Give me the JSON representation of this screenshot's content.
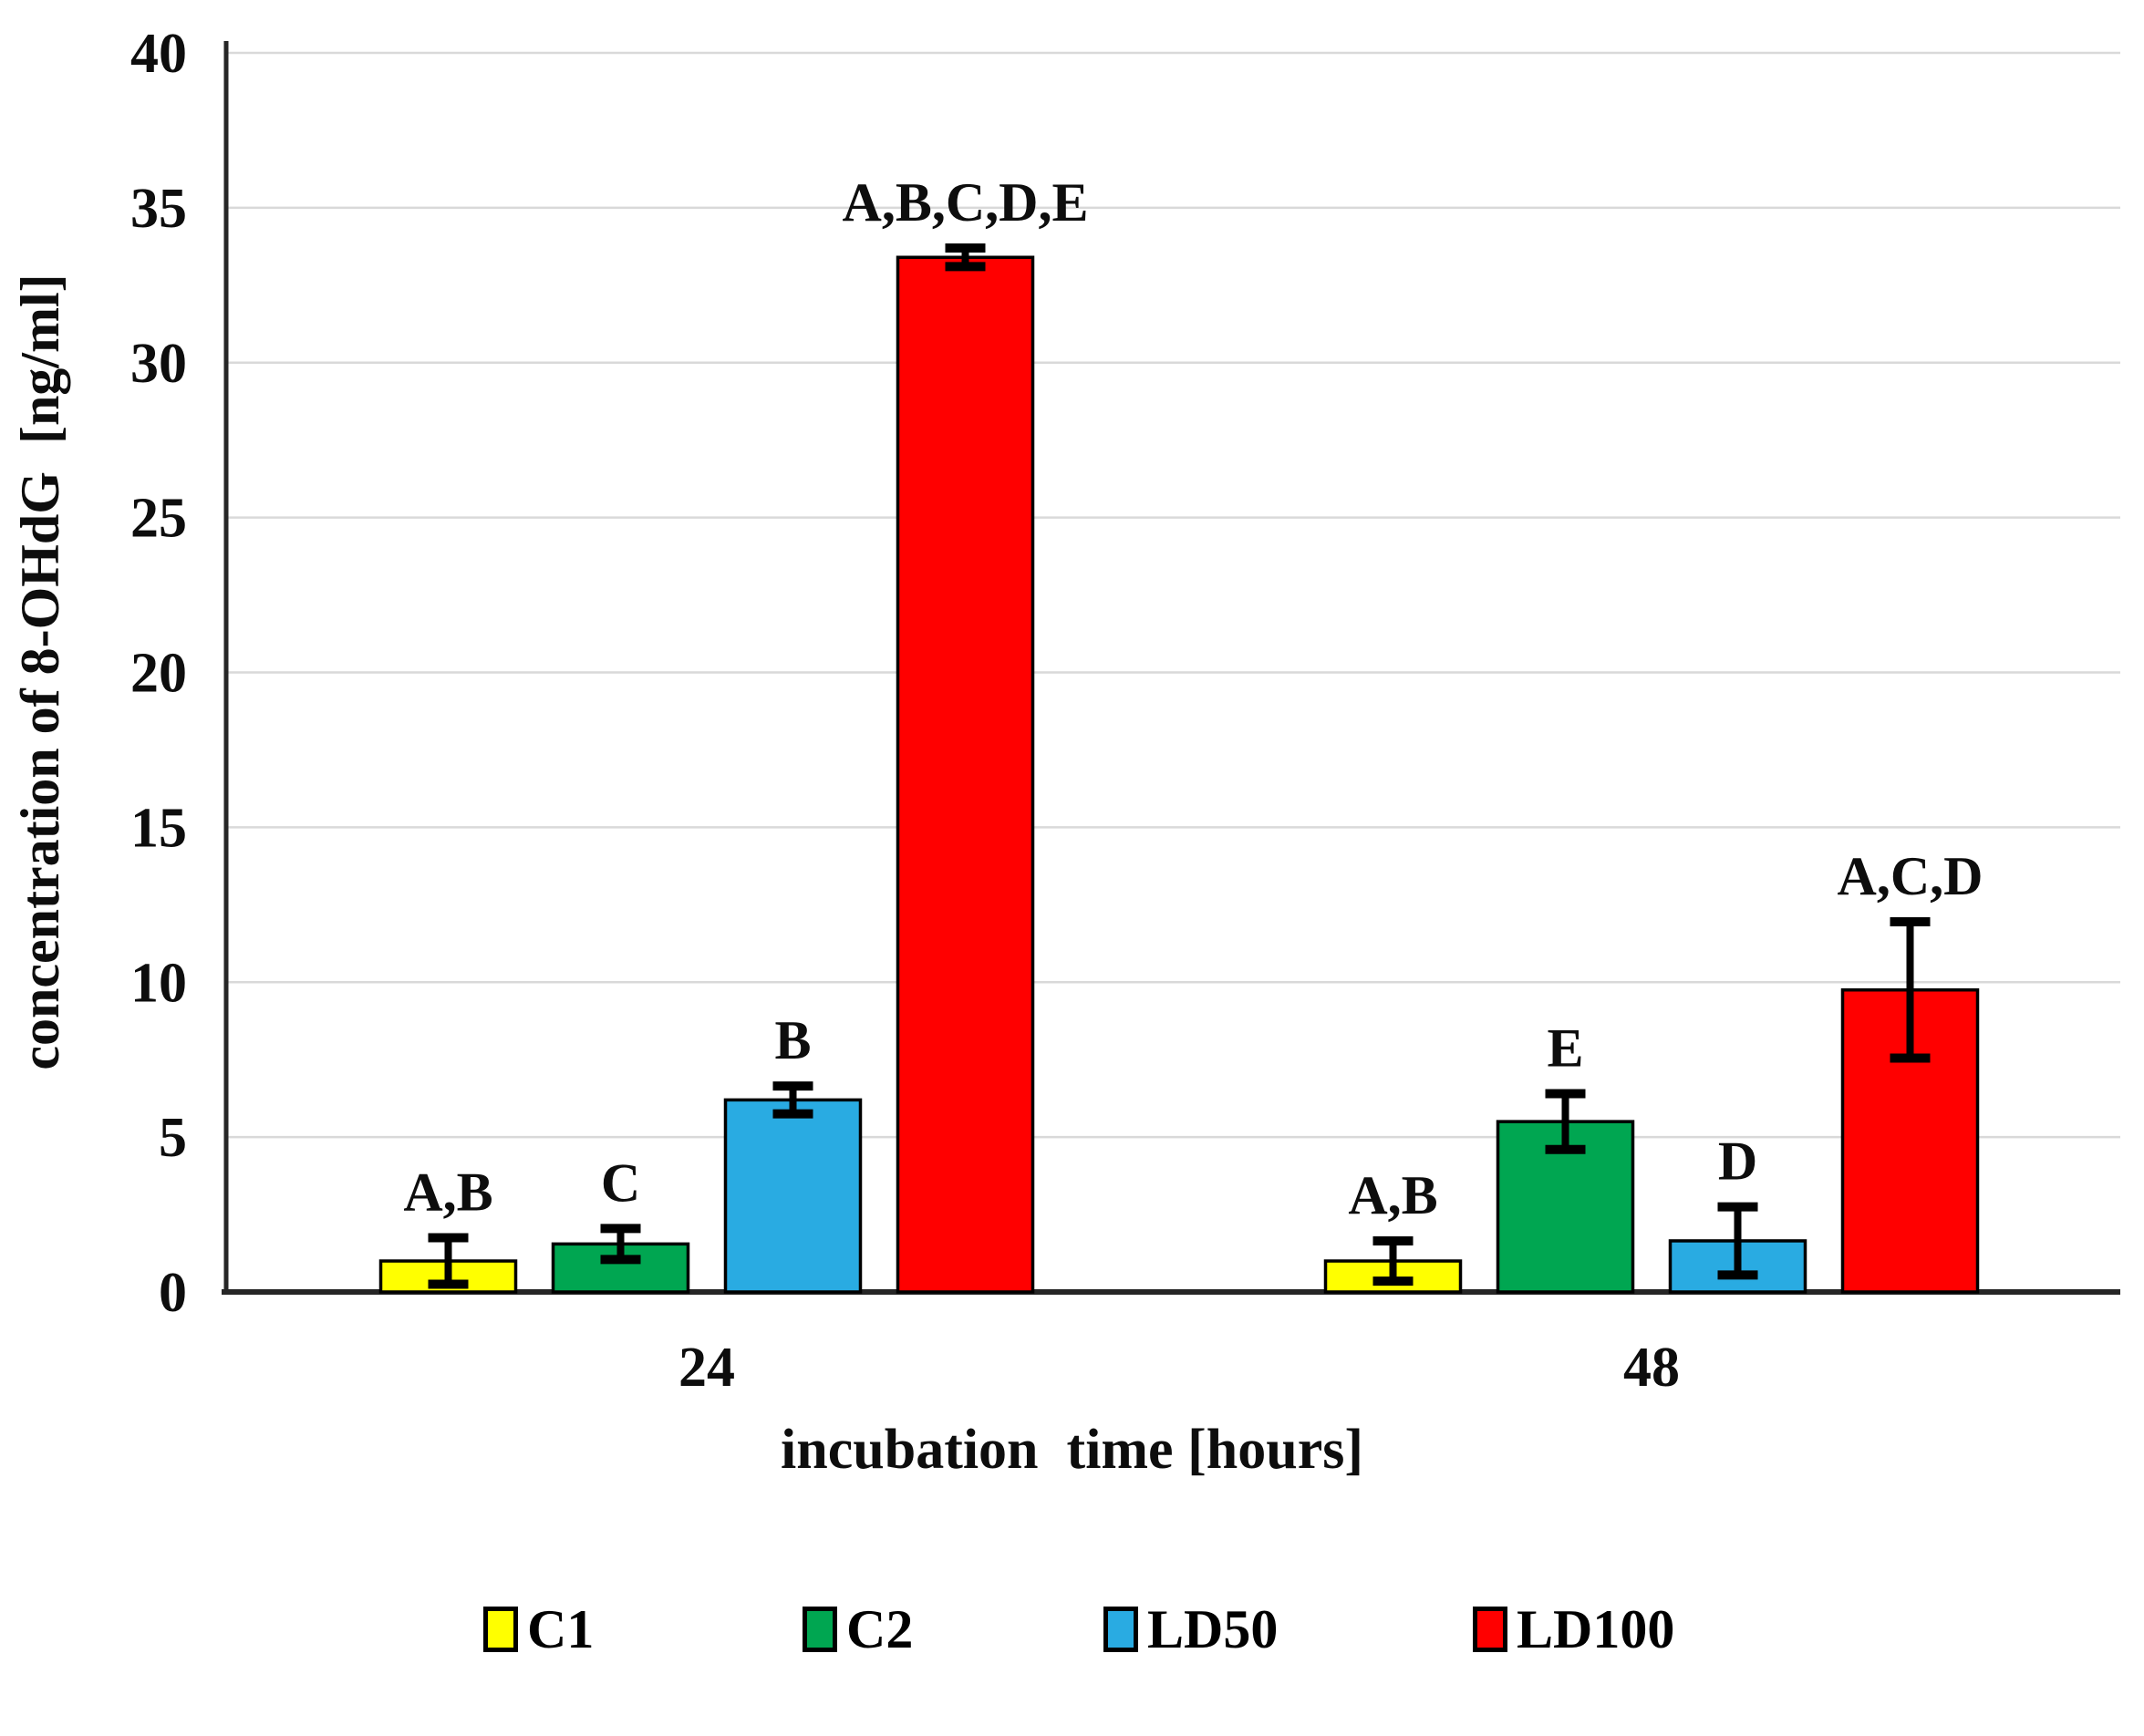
{
  "chart_data": {
    "type": "bar",
    "title": "",
    "xlabel": "incubation  time [hours]",
    "ylabel": "concentration of 8-OHdG  [ng/ml]",
    "ylim": [
      0,
      40
    ],
    "ytick_step": 5,
    "yticks": [
      0,
      5,
      10,
      15,
      20,
      25,
      30,
      35,
      40
    ],
    "grid": true,
    "legend_position": "bottom",
    "categories": [
      "24",
      "48"
    ],
    "series": [
      {
        "name": "C1",
        "color": "#FFFF00",
        "values": [
          1.0,
          1.0
        ],
        "errors": [
          0.75,
          0.65
        ],
        "annotations": [
          "A,B",
          "A,B"
        ]
      },
      {
        "name": "C2",
        "color": "#00A651",
        "values": [
          1.55,
          5.5
        ],
        "errors": [
          0.5,
          0.9
        ],
        "annotations": [
          "C",
          "E"
        ]
      },
      {
        "name": "LD50",
        "color": "#29ABE2",
        "values": [
          6.2,
          1.65
        ],
        "errors": [
          0.45,
          1.1
        ],
        "annotations": [
          "B",
          "D"
        ]
      },
      {
        "name": "LD100",
        "color": "#FF0000",
        "values": [
          33.4,
          9.75
        ],
        "errors": [
          0.3,
          2.2
        ],
        "annotations": [
          "A,B,C,D,E",
          "A,C,D"
        ]
      }
    ],
    "colors": {
      "gridline": "#D9D9D9",
      "axis": "#262626",
      "bar_border": "#000000",
      "error_bar": "#000000",
      "text": "#0d0d0d"
    }
  },
  "legend": {
    "items": [
      {
        "label": "C1",
        "color": "#FFFF00"
      },
      {
        "label": "C2",
        "color": "#00A651"
      },
      {
        "label": "LD50",
        "color": "#29ABE2"
      },
      {
        "label": "LD100",
        "color": "#FF0000"
      }
    ]
  }
}
